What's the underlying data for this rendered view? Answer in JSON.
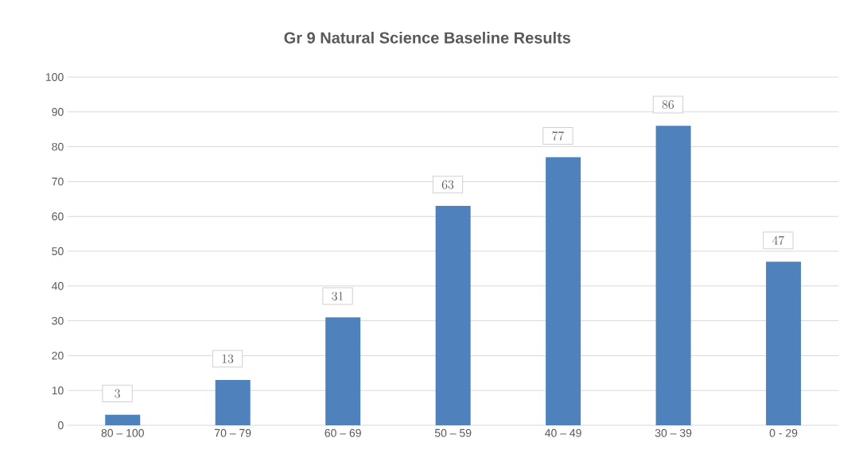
{
  "chart_data": {
    "type": "bar",
    "title": "Gr 9 Natural Science Baseline  Results",
    "categories": [
      "80 – 100",
      "70 – 79",
      "60 – 69",
      "50 – 59",
      "40 – 49",
      "30 – 39",
      "0 - 29"
    ],
    "values": [
      3,
      13,
      31,
      63,
      77,
      86,
      47
    ],
    "color": "#4f81bd",
    "ylim": [
      0,
      100
    ],
    "yticks": [
      0,
      10,
      20,
      30,
      40,
      50,
      60,
      70,
      80,
      90,
      100
    ],
    "grid": "y",
    "data_labels": true
  }
}
